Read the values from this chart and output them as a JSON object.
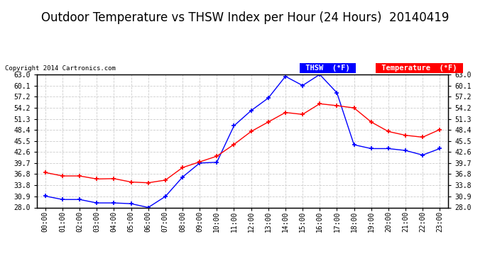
{
  "title": "Outdoor Temperature vs THSW Index per Hour (24 Hours)  20140419",
  "copyright": "Copyright 2014 Cartronics.com",
  "hours": [
    "00:00",
    "01:00",
    "02:00",
    "03:00",
    "04:00",
    "05:00",
    "06:00",
    "07:00",
    "08:00",
    "09:00",
    "10:00",
    "11:00",
    "12:00",
    "13:00",
    "14:00",
    "15:00",
    "16:00",
    "17:00",
    "18:00",
    "19:00",
    "20:00",
    "21:00",
    "22:00",
    "23:00"
  ],
  "thsw": [
    31.0,
    30.1,
    30.1,
    29.2,
    29.2,
    29.0,
    28.0,
    30.9,
    36.0,
    39.7,
    39.9,
    49.5,
    53.5,
    56.8,
    62.5,
    60.1,
    63.0,
    58.2,
    44.5,
    43.5,
    43.5,
    43.0,
    41.8,
    43.5
  ],
  "temperature": [
    37.2,
    36.3,
    36.3,
    35.5,
    35.6,
    34.7,
    34.5,
    35.2,
    38.5,
    40.0,
    41.5,
    44.6,
    48.0,
    50.5,
    53.0,
    52.5,
    55.3,
    54.8,
    54.2,
    50.5,
    48.0,
    47.0,
    46.5,
    48.5
  ],
  "ylim": [
    28.0,
    63.0
  ],
  "yticks": [
    28.0,
    30.9,
    33.8,
    36.8,
    39.7,
    42.6,
    45.5,
    48.4,
    51.3,
    54.2,
    57.2,
    60.1,
    63.0
  ],
  "thsw_color": "#0000FF",
  "temp_color": "#FF0000",
  "bg_color": "#FFFFFF",
  "plot_bg_color": "#FFFFFF",
  "grid_color": "#CCCCCC",
  "title_fontsize": 12,
  "legend_thsw_bg": "#0000FF",
  "legend_temp_bg": "#FF0000"
}
